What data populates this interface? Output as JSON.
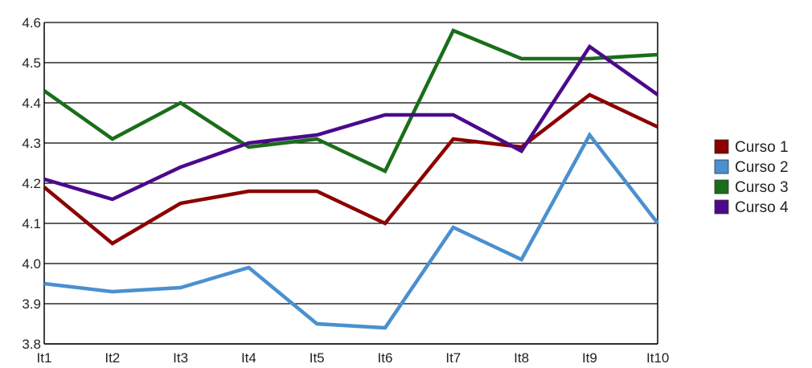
{
  "chart_data": {
    "type": "line",
    "categories": [
      "It1",
      "It2",
      "It3",
      "It4",
      "It5",
      "It6",
      "It7",
      "It8",
      "It9",
      "It10"
    ],
    "series": [
      {
        "name": "Curso 1",
        "color": "#8b0000",
        "values": [
          4.19,
          4.05,
          4.15,
          4.18,
          4.18,
          4.1,
          4.31,
          4.29,
          4.42,
          4.34
        ]
      },
      {
        "name": "Curso 2",
        "color": "#4a90d0",
        "values": [
          3.95,
          3.93,
          3.94,
          3.99,
          3.85,
          3.84,
          4.09,
          4.01,
          4.32,
          4.1
        ]
      },
      {
        "name": "Curso 3",
        "color": "#1a6e1a",
        "values": [
          4.43,
          4.31,
          4.4,
          4.29,
          4.31,
          4.23,
          4.58,
          4.51,
          4.51,
          4.52
        ]
      },
      {
        "name": "Curso 4",
        "color": "#4b0a8c",
        "values": [
          4.21,
          4.16,
          4.24,
          4.3,
          4.32,
          4.37,
          4.37,
          4.28,
          4.54,
          4.42
        ]
      }
    ],
    "yticks": [
      "3.8",
      "3.9",
      "4.0",
      "4.1",
      "4.2",
      "4.3",
      "4.4",
      "4.5",
      "4.6"
    ],
    "ylim": [
      3.8,
      4.6
    ],
    "grid": true,
    "legend_position": "right",
    "title": "",
    "xlabel": "",
    "ylabel": ""
  }
}
